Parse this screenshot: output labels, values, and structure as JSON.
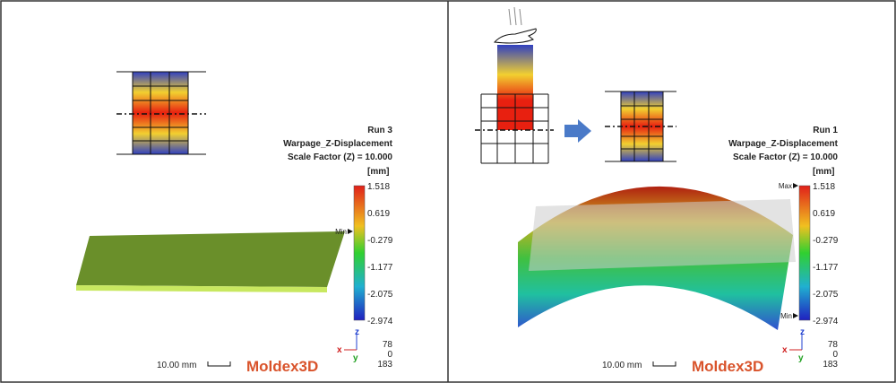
{
  "panels": [
    {
      "run": "Run 3",
      "result": "Warpage_Z-Displacement",
      "scale_factor": "Scale Factor (Z) = 10.000",
      "unit": "[mm]",
      "legend_ticks": [
        "1.518",
        "0.619",
        "-0.279",
        "-1.177",
        "-2.075",
        "-2.974"
      ],
      "markers": [
        "Min"
      ],
      "scale_bar": "10.00 mm",
      "logo": "Moldex3D",
      "axes": [
        "z",
        "x",
        "y"
      ],
      "view": [
        "78",
        "0",
        "183"
      ]
    },
    {
      "run": "Run 1",
      "result": "Warpage_Z-Displacement",
      "scale_factor": "Scale Factor (Z) = 10.000",
      "unit": "[mm]",
      "legend_ticks": [
        "1.518",
        "0.619",
        "-0.279",
        "-1.177",
        "-2.075",
        "-2.974"
      ],
      "markers": [
        "Max",
        "Min"
      ],
      "scale_bar": "10.00 mm",
      "logo": "Moldex3D",
      "axes": [
        "z",
        "x",
        "y"
      ],
      "view": [
        "78",
        "0",
        "183"
      ]
    }
  ]
}
